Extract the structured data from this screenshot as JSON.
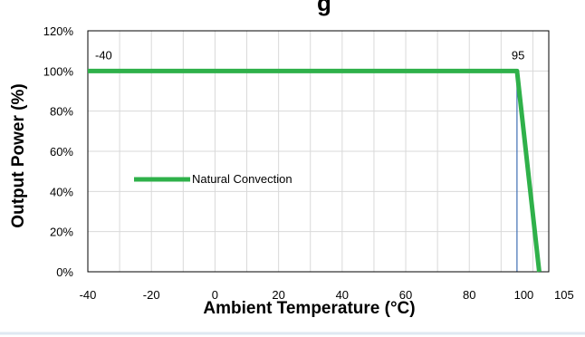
{
  "title_fragment": "g",
  "chart_data": {
    "type": "line",
    "title": "",
    "xlabel": "Ambient Temperature (°C)",
    "ylabel": "Output Power (%)",
    "xlim": [
      -40,
      105
    ],
    "ylim": [
      0,
      120
    ],
    "x_ticks": [
      -40,
      -20,
      0,
      20,
      40,
      60,
      80,
      100,
      105
    ],
    "y_ticks": [
      0,
      20,
      40,
      60,
      80,
      100,
      120
    ],
    "y_tick_format": "percent",
    "grid": true,
    "legend_position": "middle-left",
    "series": [
      {
        "name": "Natural Convection",
        "color": "#2fb14a",
        "points": [
          {
            "x": -40,
            "y": 100
          },
          {
            "x": 95,
            "y": 100
          },
          {
            "x": 102,
            "y": 0
          }
        ]
      }
    ],
    "annotations": [
      {
        "text": "-40",
        "x": -40,
        "y": 100
      },
      {
        "text": "95",
        "x": 95,
        "y": 100
      }
    ],
    "reference_lines": [
      {
        "type": "vertical",
        "x": 95,
        "y_from": 0,
        "y_to": 100,
        "color": "#3f6fb5"
      }
    ]
  }
}
